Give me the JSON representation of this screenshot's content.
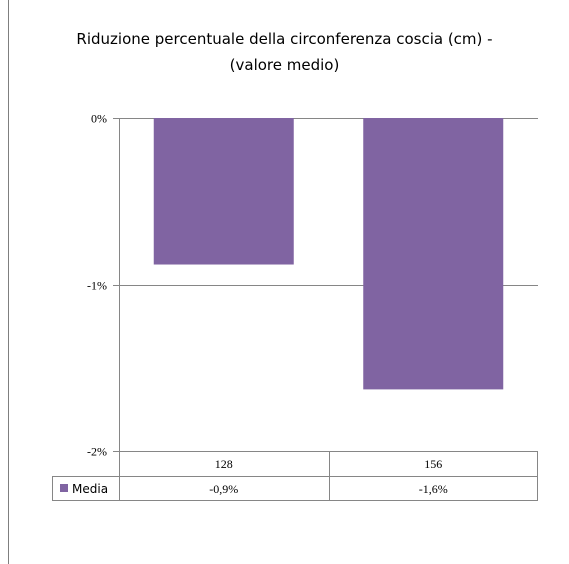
{
  "chart_data": {
    "type": "bar",
    "title": "Riduzione percentuale della circonferenza coscia (cm) -\n(valore medio)",
    "categories": [
      "128",
      "156"
    ],
    "series": [
      {
        "name": "Media",
        "values": [
          -0.88,
          -1.63
        ],
        "labels": [
          "-0,9%",
          "-1,6%"
        ],
        "color": "#8064A2"
      }
    ],
    "ylim": [
      -2,
      0
    ],
    "yticks": [
      0,
      -1,
      -2
    ],
    "ytick_labels": [
      "0%",
      "-1%",
      "-2%"
    ],
    "grid": true,
    "legend": "data-table-bottom"
  }
}
